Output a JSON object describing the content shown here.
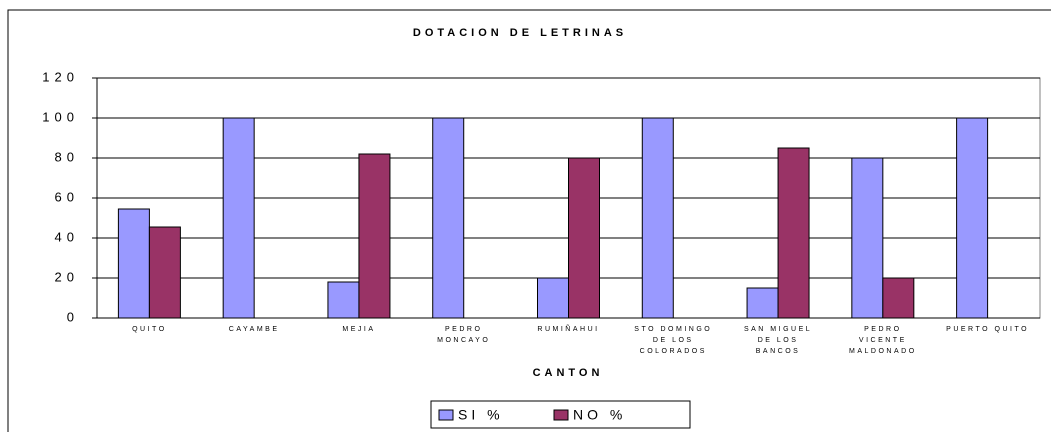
{
  "chart_data": {
    "type": "bar",
    "title": "DOTACION DE LETRINAS",
    "x_label": "CANTON",
    "categories": [
      "QUITO",
      "CAYAMBE",
      "MEJIA",
      "PEDRO MONCAYO",
      "RUMIÑAHUI",
      "STO DOMINGO DE LOS COLORADOS",
      "SAN MIGUEL DE LOS BANCOS",
      "PEDRO VICENTE MALDONADO",
      "PUERTO QUITO"
    ],
    "series": [
      {
        "name": "SI %",
        "color": "#9999ff",
        "values": [
          54.5,
          100,
          18,
          100,
          20,
          100,
          15,
          80,
          100
        ]
      },
      {
        "name": "NO %",
        "color": "#993366",
        "values": [
          45.5,
          0,
          82,
          0,
          80,
          0,
          85,
          20,
          0
        ]
      }
    ],
    "ylim": [
      0,
      120
    ],
    "yticks": [
      0,
      20,
      40,
      60,
      80,
      100,
      120
    ],
    "grid": true,
    "legend": "bottom"
  }
}
